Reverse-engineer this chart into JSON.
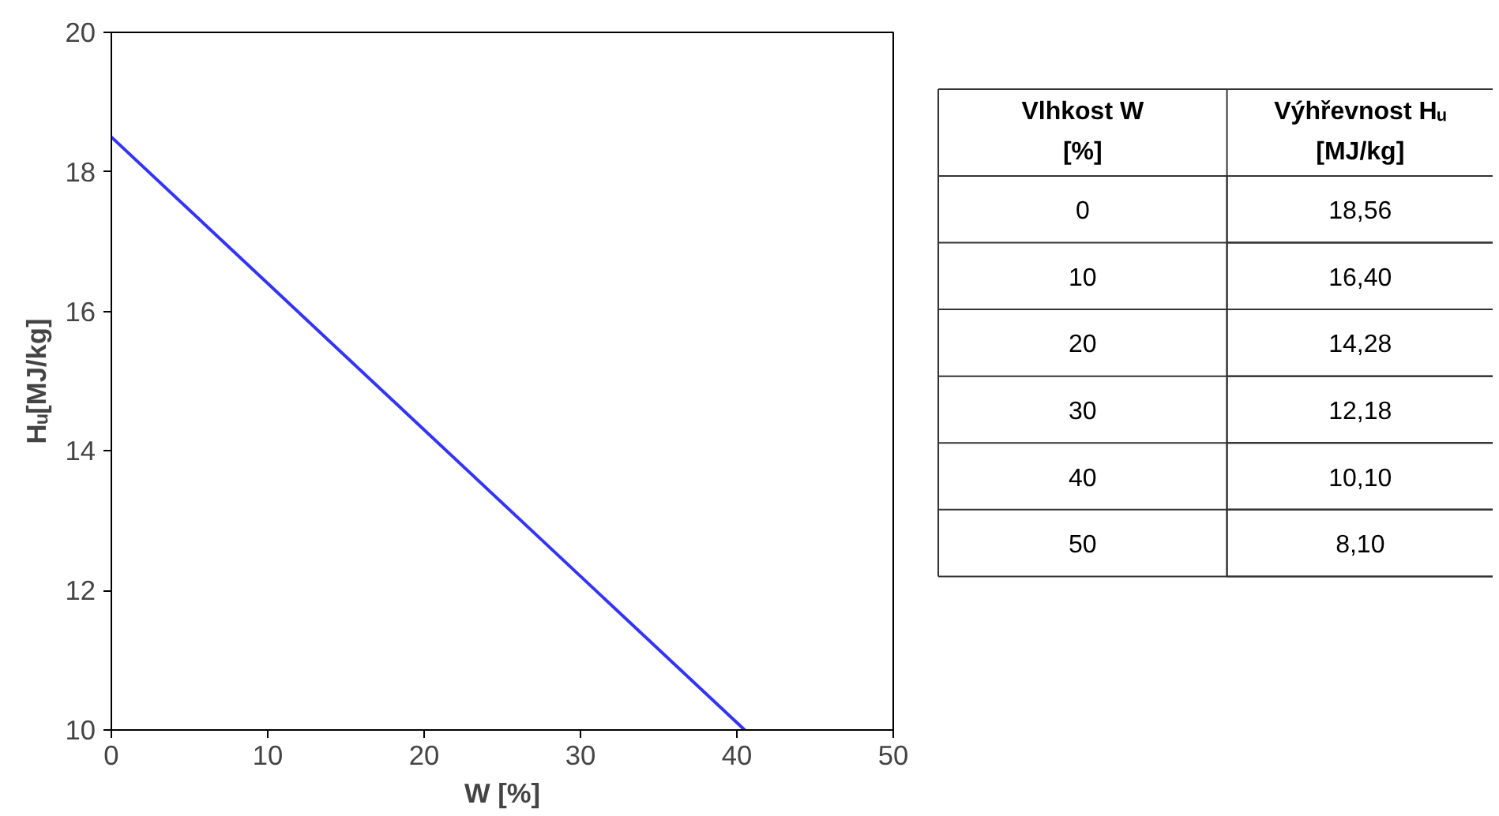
{
  "chart_data": [
    {
      "type": "line",
      "x": [
        0,
        40.5
      ],
      "values": [
        18.5,
        10
      ],
      "color": "#3333ff",
      "xlim": [
        0,
        50
      ],
      "xticks": [
        0,
        10,
        20,
        30,
        40,
        50
      ],
      "ylim": [
        10,
        20
      ],
      "yticks": [
        10,
        12,
        14,
        16,
        18,
        20
      ],
      "xlabel": "W [%]",
      "ylabel": "Hᵤ[MJ/kg]",
      "grid": false,
      "legend": false,
      "marker": "none",
      "line_style": "solid"
    },
    {
      "type": "heatmap",
      "ylabel": "Vlhkost W\n[%]",
      "categories": [
        "Výhřevnost Hᵤ\n[MJ/kg]"
      ],
      "y_categories": [
        "0",
        "10",
        "20",
        "30",
        "40",
        "50"
      ],
      "cells": [
        [
          18.56
        ],
        [
          16.4
        ],
        [
          14.28
        ],
        [
          12.18
        ],
        [
          10.1
        ],
        [
          8.1
        ]
      ],
      "cell_labels": [
        [
          "18,56"
        ],
        [
          "16,40"
        ],
        [
          "14,28"
        ],
        [
          "12,18"
        ],
        [
          "10,10"
        ],
        [
          "8,10"
        ]
      ]
    }
  ]
}
